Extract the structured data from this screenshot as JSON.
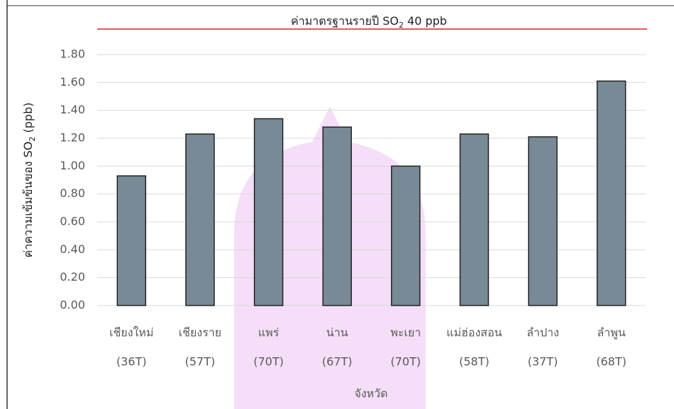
{
  "chart_data": {
    "type": "bar",
    "annotation": {
      "text": "ค่ามาตรฐานรายปี SO",
      "subscript": "2",
      "suffix": " 40 ppb"
    },
    "y_label": {
      "text": "ค่าความเข้มข้นของ SO",
      "subscript": "2",
      "suffix": " (ppb)"
    },
    "x_label": "จังหวัด",
    "categories": [
      [
        "เชียงใหม่",
        "(36T)"
      ],
      [
        "เชียงราย",
        "(57T)"
      ],
      [
        "แพร่",
        "(70T)"
      ],
      [
        "น่าน",
        "(67T)"
      ],
      [
        "พะเยา",
        "(70T)"
      ],
      [
        "แม่ฮ่องสอน",
        "(58T)"
      ],
      [
        "ลำปาง",
        "(37T)"
      ],
      [
        "ลำพูน",
        "(68T)"
      ]
    ],
    "values": [
      0.93,
      1.23,
      1.34,
      1.28,
      1.0,
      1.23,
      1.21,
      1.61
    ],
    "color": "#778a96",
    "ylim": [
      0,
      1.8
    ],
    "yticks": [
      {
        "value": 0,
        "label": "0.00"
      },
      {
        "value": 0.2,
        "label": "0.20"
      },
      {
        "value": 0.4,
        "label": "0.40"
      },
      {
        "value": 0.6,
        "label": "0.60"
      },
      {
        "value": 0.8,
        "label": "0.80"
      },
      {
        "value": 1,
        "label": "1.00"
      },
      {
        "value": 1.2,
        "label": "1.20"
      },
      {
        "value": 1.4,
        "label": "1.40"
      },
      {
        "value": 1.6,
        "label": "1.60"
      },
      {
        "value": 1.8,
        "label": "1.80"
      }
    ],
    "grid": true
  }
}
